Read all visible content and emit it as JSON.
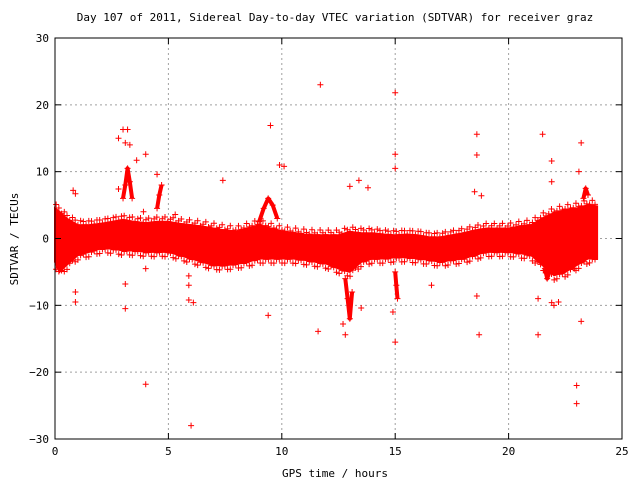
{
  "chart_data": {
    "type": "scatter",
    "title": "Day 107 of 2011, Sidereal Day-to-day VTEC variation (SDTVAR) for receiver graz",
    "xlabel": "GPS time / hours",
    "ylabel": "SDTVAR / TECUs",
    "xlim": [
      0,
      25
    ],
    "ylim": [
      -30,
      30
    ],
    "x_ticks": [
      0,
      5,
      10,
      15,
      20,
      25
    ],
    "y_ticks": [
      -30,
      -20,
      -10,
      0,
      10,
      20,
      30
    ],
    "x_tick_labels": [
      "0",
      "5",
      "10",
      "15",
      "20",
      "25"
    ],
    "y_tick_labels": [
      "−30",
      "−20",
      "−10",
      "0",
      "10",
      "20",
      "30"
    ],
    "grid": true,
    "marker": "+",
    "color": "#ff0000",
    "band": {
      "description_hours": "dense band of SDTVAR values spanning roughly 0 to 24 h",
      "x": [
        0.0,
        0.2,
        0.5,
        1.0,
        1.5,
        2.0,
        2.5,
        3.0,
        3.5,
        4.0,
        4.5,
        5.0,
        5.5,
        6.0,
        6.5,
        7.0,
        7.5,
        8.0,
        8.5,
        9.0,
        9.5,
        10.0,
        10.5,
        11.0,
        11.5,
        12.0,
        12.5,
        13.0,
        13.5,
        14.0,
        14.5,
        15.0,
        15.5,
        16.0,
        16.5,
        17.0,
        17.5,
        18.0,
        18.5,
        19.0,
        19.5,
        20.0,
        20.5,
        21.0,
        21.5,
        22.0,
        22.5,
        23.0,
        23.5,
        23.9
      ],
      "upper": [
        4.5,
        4.0,
        3.0,
        2.0,
        2.0,
        2.2,
        2.5,
        2.8,
        2.5,
        2.3,
        2.5,
        2.5,
        2.2,
        2.0,
        1.8,
        1.5,
        1.2,
        1.0,
        1.5,
        2.0,
        1.5,
        1.0,
        0.8,
        0.6,
        0.5,
        0.5,
        0.5,
        1.0,
        0.8,
        0.8,
        0.6,
        0.5,
        0.6,
        0.5,
        0.2,
        0.2,
        0.5,
        0.8,
        1.2,
        1.5,
        1.5,
        1.5,
        1.8,
        2.0,
        3.0,
        3.8,
        4.2,
        4.5,
        5.0,
        4.8
      ],
      "lower": [
        -3.5,
        -5.0,
        -4.0,
        -2.5,
        -2.0,
        -1.5,
        -1.5,
        -1.8,
        -1.8,
        -2.0,
        -2.0,
        -2.0,
        -2.5,
        -3.0,
        -3.5,
        -4.0,
        -4.0,
        -3.8,
        -3.5,
        -3.0,
        -3.0,
        -3.0,
        -3.0,
        -3.2,
        -3.5,
        -3.8,
        -4.5,
        -5.0,
        -3.5,
        -3.0,
        -3.0,
        -2.8,
        -2.8,
        -3.0,
        -3.2,
        -3.5,
        -3.2,
        -3.0,
        -2.5,
        -2.0,
        -2.0,
        -2.0,
        -2.2,
        -2.5,
        -4.0,
        -5.5,
        -5.0,
        -4.0,
        -3.0,
        -3.0
      ]
    },
    "bumps": [
      {
        "x": [
          9.0,
          9.2,
          9.4,
          9.6,
          9.8
        ],
        "y": [
          2.5,
          4.5,
          6.0,
          5.0,
          3.0
        ]
      },
      {
        "x": [
          3.0,
          3.1,
          3.2,
          3.3,
          3.4
        ],
        "y": [
          6.0,
          8.0,
          10.5,
          8.5,
          6.0
        ]
      },
      {
        "x": [
          4.5,
          4.6,
          4.7
        ],
        "y": [
          4.5,
          6.5,
          8.0
        ]
      },
      {
        "x": [
          12.8,
          12.9,
          13.0,
          13.1
        ],
        "y": [
          -6.0,
          -9.0,
          -12.0,
          -8.0
        ]
      },
      {
        "x": [
          15.0,
          15.05,
          15.1
        ],
        "y": [
          -5.0,
          -7.0,
          -9.0
        ]
      },
      {
        "x": [
          21.6,
          21.7,
          21.8
        ],
        "y": [
          -4.5,
          -6.0,
          -5.0
        ]
      },
      {
        "x": [
          23.3,
          23.4,
          23.5
        ],
        "y": [
          6.0,
          7.5,
          6.5
        ]
      }
    ],
    "outliers": [
      {
        "x": 11.7,
        "y": 23.0
      },
      {
        "x": 15.0,
        "y": 21.8
      },
      {
        "x": 9.5,
        "y": 16.9
      },
      {
        "x": 3.0,
        "y": 16.3
      },
      {
        "x": 3.2,
        "y": 16.3
      },
      {
        "x": 2.8,
        "y": 15.0
      },
      {
        "x": 3.1,
        "y": 14.3
      },
      {
        "x": 3.3,
        "y": 14.0
      },
      {
        "x": 4.0,
        "y": 12.6
      },
      {
        "x": 3.6,
        "y": 11.7
      },
      {
        "x": 9.9,
        "y": 11.0
      },
      {
        "x": 10.1,
        "y": 10.8
      },
      {
        "x": 4.5,
        "y": 9.6
      },
      {
        "x": 7.4,
        "y": 8.7
      },
      {
        "x": 13.4,
        "y": 8.7
      },
      {
        "x": 13.0,
        "y": 7.8
      },
      {
        "x": 13.8,
        "y": 7.6
      },
      {
        "x": 15.0,
        "y": 12.6
      },
      {
        "x": 15.0,
        "y": 10.5
      },
      {
        "x": 18.6,
        "y": 15.6
      },
      {
        "x": 18.6,
        "y": 12.5
      },
      {
        "x": 18.5,
        "y": 7.0
      },
      {
        "x": 18.8,
        "y": 6.4
      },
      {
        "x": 21.5,
        "y": 15.6
      },
      {
        "x": 21.9,
        "y": 11.6
      },
      {
        "x": 21.9,
        "y": 8.5
      },
      {
        "x": 23.2,
        "y": 14.3
      },
      {
        "x": 23.1,
        "y": 10.0
      },
      {
        "x": 0.8,
        "y": 7.2
      },
      {
        "x": 0.9,
        "y": 6.7
      },
      {
        "x": 2.8,
        "y": 7.4
      },
      {
        "x": 3.9,
        "y": 4.0
      },
      {
        "x": 5.3,
        "y": 3.6
      },
      {
        "x": 0.9,
        "y": -8.0
      },
      {
        "x": 0.9,
        "y": -9.5
      },
      {
        "x": 3.1,
        "y": -6.8
      },
      {
        "x": 3.1,
        "y": -10.5
      },
      {
        "x": 4.0,
        "y": -4.5
      },
      {
        "x": 5.9,
        "y": -5.6
      },
      {
        "x": 5.9,
        "y": -7.0
      },
      {
        "x": 5.9,
        "y": -9.2
      },
      {
        "x": 6.1,
        "y": -9.6
      },
      {
        "x": 4.0,
        "y": -21.8
      },
      {
        "x": 6.0,
        "y": -28.0
      },
      {
        "x": 9.4,
        "y": -11.5
      },
      {
        "x": 11.6,
        "y": -13.9
      },
      {
        "x": 12.7,
        "y": -12.8
      },
      {
        "x": 12.8,
        "y": -14.4
      },
      {
        "x": 13.5,
        "y": -10.4
      },
      {
        "x": 14.9,
        "y": -11.0
      },
      {
        "x": 15.0,
        "y": -15.5
      },
      {
        "x": 16.6,
        "y": -7.0
      },
      {
        "x": 18.6,
        "y": -8.6
      },
      {
        "x": 18.7,
        "y": -14.4
      },
      {
        "x": 21.3,
        "y": -9.0
      },
      {
        "x": 21.3,
        "y": -14.4
      },
      {
        "x": 21.9,
        "y": -9.6
      },
      {
        "x": 22.0,
        "y": -10.0
      },
      {
        "x": 22.2,
        "y": -9.5
      },
      {
        "x": 23.0,
        "y": -22.0
      },
      {
        "x": 23.0,
        "y": -24.7
      },
      {
        "x": 23.2,
        "y": -12.4
      },
      {
        "x": 22.9,
        "y": -4.5
      }
    ]
  }
}
